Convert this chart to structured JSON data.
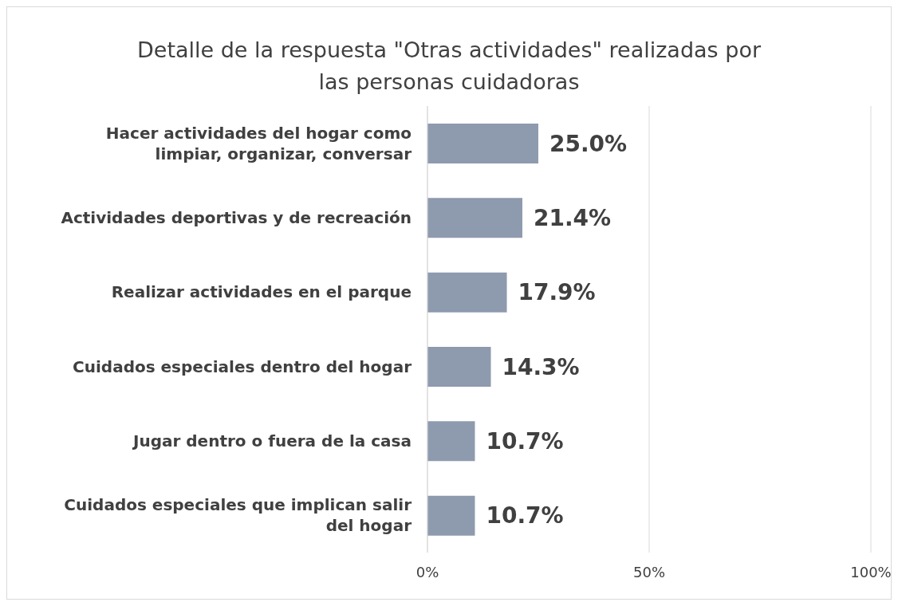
{
  "chart_data": {
    "type": "bar",
    "orientation": "horizontal",
    "title": "Detalle de la respuesta \"Otras actividades\" realizadas por las personas cuidadoras",
    "categories": [
      "Hacer actividades del hogar como limpiar, organizar, conversar",
      "Actividades deportivas y de recreación",
      "Realizar actividades en el parque",
      "Cuidados especiales dentro del hogar",
      "Jugar dentro o fuera de la casa",
      "Cuidados especiales que implican salir del hogar"
    ],
    "values": [
      25.0,
      21.4,
      17.9,
      14.3,
      10.7,
      10.7
    ],
    "value_labels": [
      "25.0%",
      "21.4%",
      "17.9%",
      "14.3%",
      "10.7%",
      "10.7%"
    ],
    "color": "#8e9aae",
    "xlim": [
      0,
      100
    ],
    "xticks": [
      {
        "value": 0,
        "label": "0%"
      },
      {
        "value": 50,
        "label": "50%"
      },
      {
        "value": 100,
        "label": "100%"
      }
    ],
    "grid": "x"
  }
}
